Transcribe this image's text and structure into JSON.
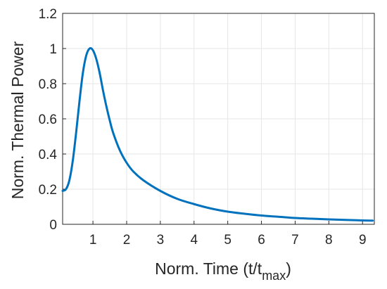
{
  "chart_data": {
    "type": "line",
    "xlabel": {
      "main": "Norm. Time (t/t",
      "subscript": "max",
      "close": ")"
    },
    "ylabel": "Norm. Thermal Power",
    "xlim": [
      0.1,
      9.35
    ],
    "ylim": [
      0,
      1.2
    ],
    "xticks": [
      "1",
      "2",
      "3",
      "4",
      "5",
      "6",
      "7",
      "8",
      "9"
    ],
    "yticks": [
      "0",
      "0.2",
      "0.4",
      "0.6",
      "0.8",
      "1",
      "1.2"
    ],
    "grid": true,
    "series": [
      {
        "color": "#0072bd",
        "x": [
          0.1,
          0.2,
          0.3,
          0.4,
          0.5,
          0.6,
          0.7,
          0.8,
          0.9,
          1.0,
          1.1,
          1.2,
          1.3,
          1.4,
          1.5,
          1.6,
          1.8,
          2.0,
          2.2,
          2.5,
          3.0,
          3.5,
          4.0,
          4.5,
          5.0,
          5.5,
          6.0,
          6.5,
          7.0,
          7.5,
          8.0,
          8.5,
          9.0,
          9.3
        ],
        "y": [
          0.19,
          0.2,
          0.25,
          0.36,
          0.52,
          0.7,
          0.86,
          0.96,
          1.0,
          0.99,
          0.94,
          0.86,
          0.76,
          0.67,
          0.59,
          0.52,
          0.42,
          0.35,
          0.3,
          0.25,
          0.19,
          0.145,
          0.115,
          0.09,
          0.072,
          0.06,
          0.05,
          0.043,
          0.036,
          0.032,
          0.028,
          0.025,
          0.022,
          0.021
        ]
      }
    ]
  }
}
